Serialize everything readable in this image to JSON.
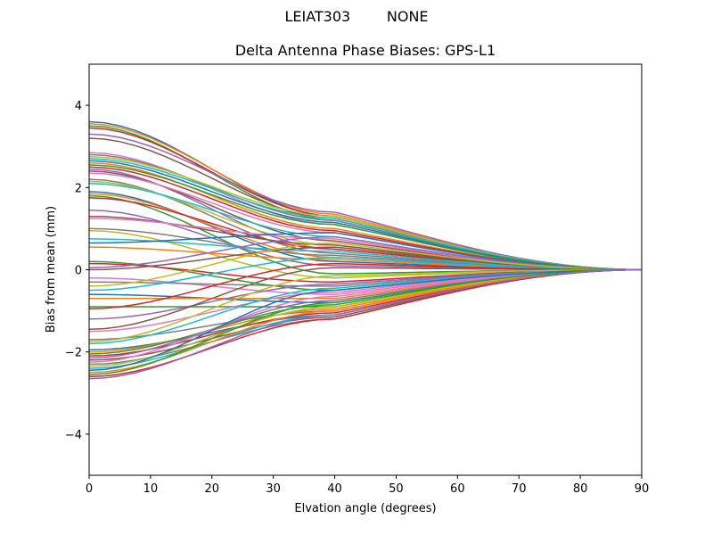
{
  "figure": {
    "suptitle_antenna": "LEIAT303",
    "suptitle_radome": "NONE",
    "suptitle": "LEIAT303        NONE"
  },
  "chart_data": {
    "type": "line",
    "title": "Delta Antenna Phase Biases: GPS-L1",
    "xlabel": "Elvation angle (degrees)",
    "ylabel": "Bias from mean (mm)",
    "xlim": [
      0,
      90
    ],
    "ylim": [
      -5,
      5
    ],
    "xticks": [
      0,
      10,
      20,
      30,
      40,
      50,
      60,
      70,
      80,
      90
    ],
    "yticks": [
      -4,
      -2,
      0,
      2,
      4
    ],
    "grid": false,
    "legend": null,
    "x": [
      0,
      5,
      10,
      15,
      20,
      25,
      30,
      35,
      40,
      45,
      50,
      55,
      60,
      65,
      70,
      75,
      80,
      85,
      90
    ],
    "colors": [
      "#1f77b4",
      "#ff7f0e",
      "#2ca02c",
      "#d62728",
      "#9467bd",
      "#8c564b",
      "#e377c2",
      "#7f7f7f",
      "#bcbd22",
      "#17becf"
    ],
    "series_note": "~70 satellite curves; each starts at listed value at 0 deg and converges to 0 at 90 deg",
    "series_start_values": [
      3.6,
      3.55,
      3.5,
      3.45,
      3.3,
      3.2,
      2.85,
      2.8,
      2.75,
      2.7,
      2.65,
      2.6,
      2.55,
      2.5,
      2.45,
      2.4,
      2.35,
      2.2,
      2.15,
      2.1,
      1.9,
      1.85,
      1.8,
      1.75,
      1.45,
      1.3,
      1.25,
      1.0,
      0.95,
      0.75,
      0.65,
      0.55,
      0.2,
      0.15,
      0.05,
      0.0,
      -0.2,
      -0.3,
      -0.4,
      -0.5,
      -0.6,
      -0.7,
      -0.9,
      -0.95,
      -1.2,
      -1.45,
      -1.5,
      -1.7,
      -1.75,
      -1.8,
      -1.95,
      -2.0,
      -2.05,
      -2.1,
      -2.15,
      -2.2,
      -2.25,
      -2.3,
      -2.35,
      -2.4,
      -2.45,
      -2.5,
      -2.55,
      -2.6,
      -2.65
    ],
    "series_mid_values_at_40deg": [
      1.3,
      1.35,
      1.2,
      1.3,
      1.4,
      1.25,
      1.1,
      1.2,
      1.3,
      1.25,
      1.15,
      1.0,
      1.1,
      0.95,
      0.5,
      0.7,
      0.9,
      0.4,
      0.6,
      0.8,
      0.2,
      0.3,
      -0.1,
      0.5,
      0.1,
      0.6,
      0.75,
      0.35,
      -0.2,
      0.45,
      0.9,
      0.25,
      -0.5,
      -0.3,
      0.8,
      0.55,
      -0.6,
      -0.4,
      0.65,
      0.3,
      -0.8,
      -0.7,
      -0.9,
      0.15,
      -0.35,
      0.05,
      -0.55,
      -1.0,
      -0.15,
      -0.45,
      -1.1,
      -0.95,
      -0.85,
      -1.05,
      -0.75,
      -1.15,
      -0.65,
      -1.2,
      -0.9,
      -1.1,
      -0.5,
      -1.0,
      -0.8,
      -1.2,
      -1.1
    ]
  }
}
